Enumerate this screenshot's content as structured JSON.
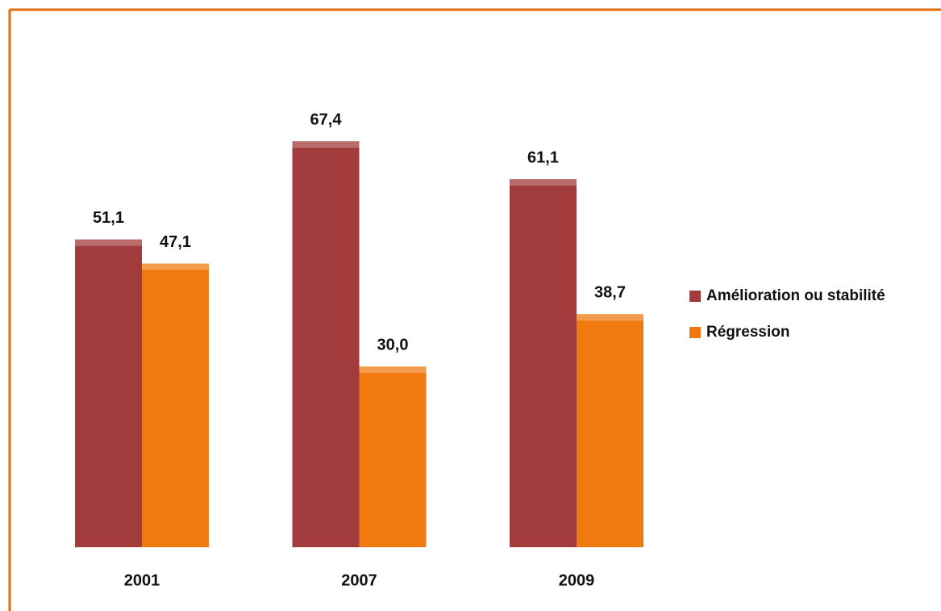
{
  "chart_data": {
    "type": "bar",
    "categories": [
      "2001",
      "2007",
      "2009"
    ],
    "series": [
      {
        "name": "Amélioration ou stabilité",
        "color": "#a23b3b",
        "values": [
          51.1,
          67.4,
          61.1
        ],
        "value_labels": [
          "51,1",
          "67,4",
          "61,1"
        ]
      },
      {
        "name": "Régression",
        "color": "#f07a10",
        "values": [
          47.1,
          30.0,
          38.7
        ],
        "value_labels": [
          "47,1",
          "30,0",
          "38,7"
        ]
      }
    ]
  }
}
